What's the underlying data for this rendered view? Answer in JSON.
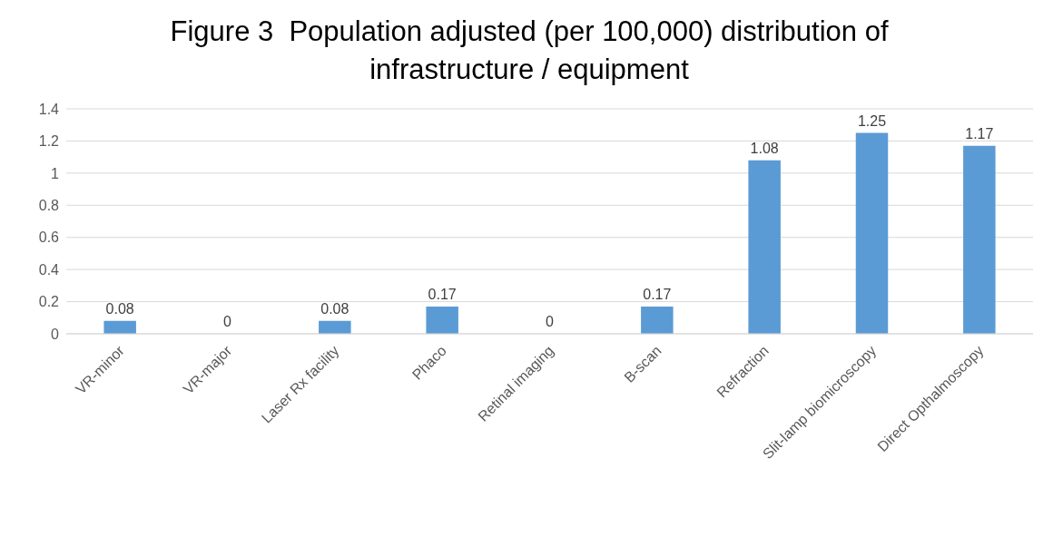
{
  "chart_data": {
    "type": "bar",
    "title": "Figure 3  Population adjusted (per 100,000) distribution of infrastructure / equipment",
    "categories": [
      "VR-minor",
      "VR-major",
      "Laser Rx facility",
      "Phaco",
      "Retinal imaging",
      "B-scan",
      "Refraction",
      "Slit-lamp biomicroscopy",
      "Direct Opthalmoscopy"
    ],
    "values": [
      0.08,
      0,
      0.08,
      0.17,
      0,
      0.17,
      1.08,
      1.25,
      1.17
    ],
    "color": "#5b9bd5",
    "ylim": [
      0,
      1.4
    ],
    "yticks": [
      0,
      0.2,
      0.4,
      0.6,
      0.8,
      1,
      1.2,
      1.4
    ],
    "grid": "y",
    "data_labels": true
  }
}
